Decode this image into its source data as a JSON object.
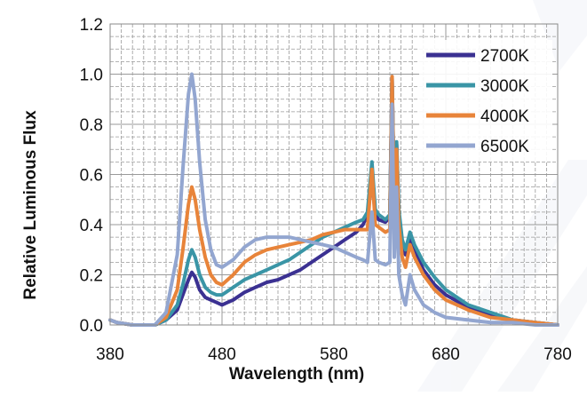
{
  "chart_data": {
    "type": "line",
    "title": "",
    "xlabel": "Wavelength (nm)",
    "ylabel": "Relative Luminous Flux",
    "xlim": [
      380,
      780
    ],
    "ylim": [
      0.0,
      1.2
    ],
    "x_ticks": [
      380,
      480,
      580,
      680,
      780
    ],
    "x_tick_labels": [
      "380",
      "480",
      "580",
      "680",
      "780"
    ],
    "y_ticks": [
      0.0,
      0.2,
      0.4,
      0.6,
      0.8,
      1.0,
      1.2
    ],
    "y_tick_labels": [
      "0.0",
      "0.2",
      "0.4",
      "0.6",
      "0.8",
      "1.0",
      "1.2"
    ],
    "grid": true,
    "legend_position": "top-right",
    "series": [
      {
        "name": "2700K",
        "color": "#3b3192",
        "points": [
          [
            380,
            0.02
          ],
          [
            386,
            0.01
          ],
          [
            400,
            0.0
          ],
          [
            420,
            0.0
          ],
          [
            430,
            0.02
          ],
          [
            440,
            0.06
          ],
          [
            445,
            0.12
          ],
          [
            450,
            0.18
          ],
          [
            453,
            0.21
          ],
          [
            456,
            0.19
          ],
          [
            460,
            0.14
          ],
          [
            465,
            0.11
          ],
          [
            470,
            0.1
          ],
          [
            475,
            0.09
          ],
          [
            480,
            0.08
          ],
          [
            490,
            0.1
          ],
          [
            500,
            0.13
          ],
          [
            510,
            0.15
          ],
          [
            520,
            0.17
          ],
          [
            530,
            0.18
          ],
          [
            540,
            0.2
          ],
          [
            550,
            0.22
          ],
          [
            560,
            0.25
          ],
          [
            570,
            0.28
          ],
          [
            580,
            0.31
          ],
          [
            590,
            0.34
          ],
          [
            600,
            0.37
          ],
          [
            606,
            0.4
          ],
          [
            610,
            0.44
          ],
          [
            614,
            0.58
          ],
          [
            617,
            0.44
          ],
          [
            620,
            0.42
          ],
          [
            626,
            0.41
          ],
          [
            630,
            0.43
          ],
          [
            632,
            0.99
          ],
          [
            634,
            0.46
          ],
          [
            636,
            0.72
          ],
          [
            638,
            0.44
          ],
          [
            641,
            0.32
          ],
          [
            644,
            0.28
          ],
          [
            648,
            0.35
          ],
          [
            652,
            0.3
          ],
          [
            660,
            0.22
          ],
          [
            670,
            0.16
          ],
          [
            680,
            0.12
          ],
          [
            700,
            0.07
          ],
          [
            720,
            0.04
          ],
          [
            740,
            0.02
          ],
          [
            760,
            0.01
          ],
          [
            780,
            0.0
          ]
        ]
      },
      {
        "name": "3000K",
        "color": "#3a95a6",
        "points": [
          [
            380,
            0.02
          ],
          [
            386,
            0.01
          ],
          [
            400,
            0.0
          ],
          [
            420,
            0.0
          ],
          [
            430,
            0.02
          ],
          [
            440,
            0.08
          ],
          [
            445,
            0.16
          ],
          [
            450,
            0.26
          ],
          [
            453,
            0.3
          ],
          [
            456,
            0.27
          ],
          [
            460,
            0.2
          ],
          [
            465,
            0.15
          ],
          [
            470,
            0.13
          ],
          [
            475,
            0.12
          ],
          [
            480,
            0.12
          ],
          [
            490,
            0.15
          ],
          [
            500,
            0.18
          ],
          [
            510,
            0.2
          ],
          [
            520,
            0.22
          ],
          [
            530,
            0.24
          ],
          [
            540,
            0.26
          ],
          [
            550,
            0.29
          ],
          [
            560,
            0.32
          ],
          [
            570,
            0.35
          ],
          [
            580,
            0.37
          ],
          [
            590,
            0.39
          ],
          [
            600,
            0.41
          ],
          [
            606,
            0.42
          ],
          [
            610,
            0.45
          ],
          [
            614,
            0.65
          ],
          [
            617,
            0.46
          ],
          [
            620,
            0.44
          ],
          [
            626,
            0.42
          ],
          [
            630,
            0.44
          ],
          [
            632,
            0.99
          ],
          [
            634,
            0.48
          ],
          [
            636,
            0.73
          ],
          [
            638,
            0.46
          ],
          [
            641,
            0.34
          ],
          [
            644,
            0.3
          ],
          [
            648,
            0.37
          ],
          [
            652,
            0.32
          ],
          [
            660,
            0.25
          ],
          [
            670,
            0.19
          ],
          [
            680,
            0.14
          ],
          [
            700,
            0.08
          ],
          [
            720,
            0.05
          ],
          [
            740,
            0.02
          ],
          [
            760,
            0.01
          ],
          [
            780,
            0.0
          ]
        ]
      },
      {
        "name": "4000K",
        "color": "#e8843a",
        "points": [
          [
            380,
            0.02
          ],
          [
            386,
            0.01
          ],
          [
            400,
            0.0
          ],
          [
            420,
            0.0
          ],
          [
            430,
            0.03
          ],
          [
            440,
            0.14
          ],
          [
            445,
            0.3
          ],
          [
            450,
            0.48
          ],
          [
            453,
            0.55
          ],
          [
            456,
            0.5
          ],
          [
            460,
            0.38
          ],
          [
            465,
            0.27
          ],
          [
            470,
            0.2
          ],
          [
            475,
            0.17
          ],
          [
            480,
            0.16
          ],
          [
            490,
            0.2
          ],
          [
            500,
            0.25
          ],
          [
            510,
            0.28
          ],
          [
            520,
            0.3
          ],
          [
            530,
            0.31
          ],
          [
            540,
            0.32
          ],
          [
            550,
            0.33
          ],
          [
            560,
            0.34
          ],
          [
            570,
            0.36
          ],
          [
            580,
            0.37
          ],
          [
            590,
            0.38
          ],
          [
            600,
            0.38
          ],
          [
            606,
            0.38
          ],
          [
            610,
            0.38
          ],
          [
            614,
            0.62
          ],
          [
            617,
            0.4
          ],
          [
            620,
            0.39
          ],
          [
            626,
            0.37
          ],
          [
            630,
            0.38
          ],
          [
            632,
            0.99
          ],
          [
            634,
            0.42
          ],
          [
            636,
            0.7
          ],
          [
            638,
            0.4
          ],
          [
            641,
            0.27
          ],
          [
            644,
            0.23
          ],
          [
            648,
            0.32
          ],
          [
            652,
            0.27
          ],
          [
            660,
            0.2
          ],
          [
            670,
            0.14
          ],
          [
            680,
            0.1
          ],
          [
            700,
            0.06
          ],
          [
            720,
            0.03
          ],
          [
            740,
            0.02
          ],
          [
            760,
            0.01
          ],
          [
            780,
            0.0
          ]
        ]
      },
      {
        "name": "6500K",
        "color": "#93a6d0",
        "points": [
          [
            380,
            0.02
          ],
          [
            386,
            0.01
          ],
          [
            400,
            0.0
          ],
          [
            420,
            0.0
          ],
          [
            430,
            0.05
          ],
          [
            440,
            0.28
          ],
          [
            445,
            0.62
          ],
          [
            450,
            0.92
          ],
          [
            453,
            1.0
          ],
          [
            456,
            0.9
          ],
          [
            460,
            0.65
          ],
          [
            465,
            0.42
          ],
          [
            470,
            0.3
          ],
          [
            475,
            0.24
          ],
          [
            480,
            0.23
          ],
          [
            490,
            0.26
          ],
          [
            500,
            0.31
          ],
          [
            510,
            0.34
          ],
          [
            520,
            0.35
          ],
          [
            530,
            0.35
          ],
          [
            540,
            0.35
          ],
          [
            550,
            0.34
          ],
          [
            560,
            0.33
          ],
          [
            570,
            0.32
          ],
          [
            580,
            0.31
          ],
          [
            590,
            0.29
          ],
          [
            600,
            0.27
          ],
          [
            606,
            0.26
          ],
          [
            610,
            0.25
          ],
          [
            614,
            0.45
          ],
          [
            617,
            0.26
          ],
          [
            620,
            0.25
          ],
          [
            626,
            0.24
          ],
          [
            630,
            0.25
          ],
          [
            632,
            0.88
          ],
          [
            634,
            0.27
          ],
          [
            636,
            0.55
          ],
          [
            638,
            0.2
          ],
          [
            641,
            0.12
          ],
          [
            644,
            0.08
          ],
          [
            648,
            0.2
          ],
          [
            652,
            0.14
          ],
          [
            660,
            0.08
          ],
          [
            670,
            0.05
          ],
          [
            680,
            0.03
          ],
          [
            700,
            0.02
          ],
          [
            720,
            0.01
          ],
          [
            740,
            0.01
          ],
          [
            760,
            0.0
          ],
          [
            780,
            0.0
          ]
        ]
      }
    ]
  }
}
